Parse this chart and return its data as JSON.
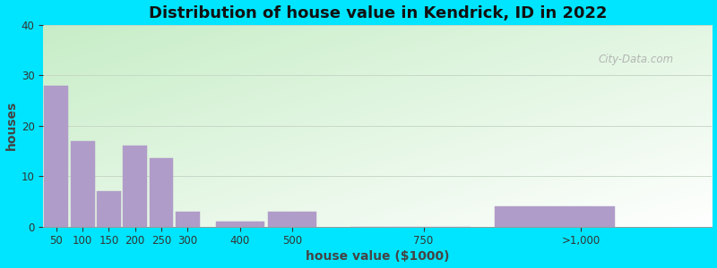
{
  "title": "Distribution of house value in Kendrick, ID in 2022",
  "xlabel": "house value ($1000)",
  "ylabel": "houses",
  "bar_labels": [
    "50",
    "100",
    "150",
    "200",
    "250",
    "300",
    "400",
    "500",
    "750",
    ">1,000"
  ],
  "bar_values": [
    28,
    17,
    7,
    16,
    13.5,
    3,
    1,
    3,
    0,
    4
  ],
  "bar_lefts": [
    25,
    75,
    125,
    175,
    225,
    275,
    350,
    450,
    600,
    875
  ],
  "bar_widths": [
    50,
    50,
    50,
    50,
    50,
    50,
    100,
    100,
    250,
    250
  ],
  "x_tick_positions": [
    50,
    100,
    150,
    200,
    250,
    300,
    400,
    500,
    750,
    1050
  ],
  "xlim": [
    25,
    1300
  ],
  "bar_color": "#b09cc8",
  "bar_edgecolor": "#b09cc8",
  "ylim": [
    0,
    40
  ],
  "yticks": [
    0,
    10,
    20,
    30,
    40
  ],
  "outer_bg": "#00e5ff",
  "bg_left": "#c8eec8",
  "bg_right": "#f5fff5",
  "title_fontsize": 13,
  "axis_label_fontsize": 10,
  "tick_fontsize": 8.5,
  "grid_color": "#c8d8c8",
  "watermark_text": "City-Data.com"
}
